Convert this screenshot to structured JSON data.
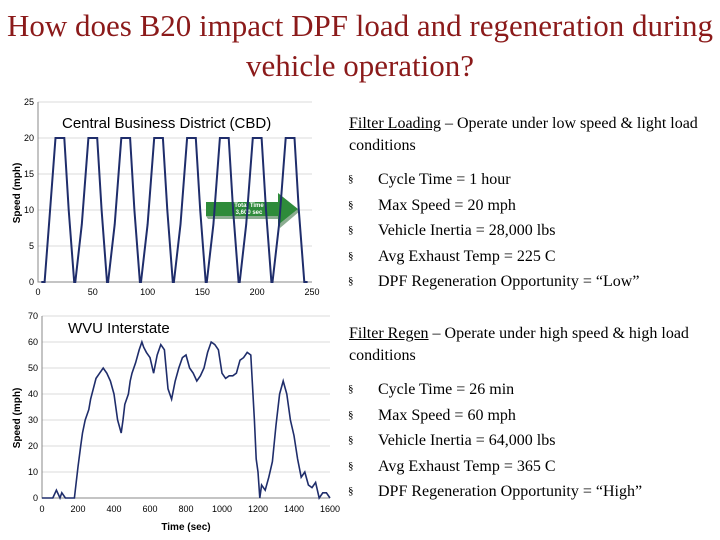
{
  "title": "How does B20 impact DPF load and regeneration during vehicle operation?",
  "colors": {
    "title": "#8b1a1a",
    "series": "#1f2d6b",
    "arrow": "#2e8b3a",
    "grid": "#cfcfcf"
  },
  "chart_data": [
    {
      "type": "line",
      "title": "Central Business District (CBD)",
      "xlabel": "",
      "ylabel": "Speed (mph)",
      "xlim": [
        0,
        250
      ],
      "ylim": [
        0,
        25
      ],
      "xticks": [
        "0",
        "50",
        "100",
        "150",
        "200",
        "250"
      ],
      "yticks": [
        "0",
        "5",
        "10",
        "15",
        "20",
        "25"
      ],
      "annotation": "Total Time 3,600 sec",
      "series": [
        {
          "x": [
            3,
            6,
            10,
            16,
            24,
            28,
            33,
            34,
            40,
            46,
            54,
            58,
            63,
            64,
            70,
            76,
            84,
            88,
            93,
            94,
            100,
            106,
            114,
            118,
            123,
            124,
            130,
            136,
            144,
            148,
            153,
            154,
            160,
            166,
            174,
            178,
            183,
            184,
            190,
            196,
            204,
            208,
            213,
            214,
            220,
            226,
            234,
            238,
            243,
            246
          ],
          "y": [
            0,
            0,
            8,
            20,
            20,
            10,
            0,
            0,
            8,
            20,
            20,
            10,
            0,
            0,
            8,
            20,
            20,
            10,
            0,
            0,
            8,
            20,
            20,
            10,
            0,
            0,
            8,
            20,
            20,
            10,
            0,
            0,
            8,
            20,
            20,
            10,
            0,
            0,
            8,
            20,
            20,
            10,
            0,
            0,
            8,
            20,
            20,
            10,
            0,
            0
          ]
        }
      ]
    },
    {
      "type": "line",
      "title": "WVU Interstate",
      "xlabel": "Time (sec)",
      "ylabel": "Speed (mph)",
      "xlim": [
        0,
        1600
      ],
      "ylim": [
        0,
        70
      ],
      "xticks": [
        "0",
        "200",
        "400",
        "600",
        "800",
        "1000",
        "1200",
        "1400",
        "1600"
      ],
      "yticks": [
        "0",
        "10",
        "20",
        "30",
        "40",
        "50",
        "60",
        "70"
      ],
      "series": [
        {
          "x": [
            0,
            60,
            80,
            100,
            110,
            130,
            160,
            180,
            200,
            215,
            225,
            240,
            260,
            270,
            285,
            300,
            320,
            340,
            360,
            380,
            400,
            410,
            420,
            440,
            450,
            460,
            480,
            490,
            500,
            520,
            540,
            555,
            565,
            580,
            600,
            620,
            640,
            660,
            680,
            700,
            720,
            740,
            760,
            780,
            800,
            820,
            840,
            860,
            880,
            900,
            920,
            940,
            960,
            980,
            1000,
            1020,
            1040,
            1060,
            1080,
            1100,
            1120,
            1140,
            1160,
            1180,
            1190,
            1200,
            1210,
            1220,
            1240,
            1260,
            1280,
            1300,
            1320,
            1340,
            1360,
            1380,
            1400,
            1420,
            1440,
            1460,
            1480,
            1500,
            1520,
            1540,
            1560,
            1580,
            1600
          ],
          "y": [
            0,
            0,
            3,
            0,
            2,
            0,
            0,
            0,
            12,
            20,
            25,
            30,
            34,
            38,
            42,
            46,
            48,
            50,
            48,
            45,
            40,
            35,
            30,
            25,
            30,
            36,
            40,
            45,
            48,
            52,
            57,
            60,
            58,
            56,
            54,
            48,
            55,
            59,
            57,
            42,
            38,
            45,
            50,
            54,
            55,
            50,
            48,
            45,
            47,
            50,
            56,
            60,
            59,
            57,
            48,
            46,
            47,
            47,
            48,
            53,
            54,
            56,
            55,
            30,
            15,
            10,
            0,
            5,
            3,
            8,
            14,
            28,
            40,
            45,
            40,
            30,
            24,
            15,
            8,
            10,
            5,
            4,
            6,
            0,
            2,
            2,
            0
          ]
        }
      ]
    }
  ],
  "cbd_panel": {
    "heading_underlined": "Filter Loading",
    "heading_rest": " – Operate under low speed & light load conditions",
    "bullets": [
      "Cycle Time = 1 hour",
      "Max Speed = 20 mph",
      "Vehicle Inertia = 28,000 lbs",
      "Avg Exhaust Temp = 225 C",
      "DPF Regeneration Opportunity = “Low”"
    ]
  },
  "wvu_panel": {
    "heading_underlined": "Filter Regen",
    "heading_rest": " – Operate under high speed & high load conditions",
    "bullets": [
      "Cycle Time = 26 min",
      "Max Speed = 60 mph",
      "Vehicle Inertia = 64,000 lbs",
      "Avg Exhaust Temp = 365 C",
      "DPF Regeneration Opportunity = “High”"
    ]
  },
  "bullet_glyph": "§"
}
